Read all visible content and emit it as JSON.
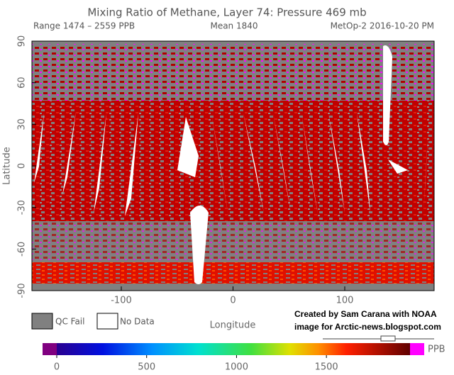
{
  "chart_data": {
    "type": "map",
    "title": "Mixing Ratio of Methane, Layer 74: Pressure 469 mb",
    "range_label": "Range 1474 – 2559 PPB",
    "mean_label": "Mean 1840",
    "source_label": "MetOp-2 2016-10-20 PM",
    "xlabel": "Longitude",
    "ylabel": "Latitude",
    "xlim": [
      -180,
      180
    ],
    "xticks": [
      -100,
      0,
      100
    ],
    "ylim": [
      -90,
      90
    ],
    "yticks": [
      -90,
      -60,
      -30,
      0,
      30,
      60,
      90
    ],
    "legend": [
      "QC Fail",
      "No Data"
    ],
    "credit": [
      "Created by Sam Carana with NOAA",
      "image for Arctic-news.blogspot.com"
    ],
    "colorbar": {
      "label": "PPB",
      "lim": [
        0,
        1965
      ],
      "ticks": [
        0,
        500,
        1000,
        1500
      ]
    }
  }
}
